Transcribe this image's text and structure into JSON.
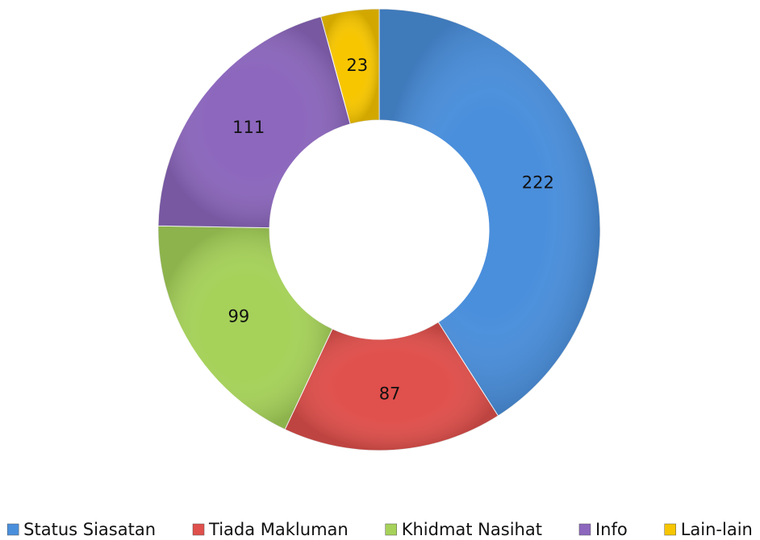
{
  "chart_data": {
    "type": "pie",
    "categories": [
      "Status Siasatan",
      "Tiada Makluman",
      "Khidmat Nasihat",
      "Info",
      "Lain-lain"
    ],
    "values": [
      222,
      87,
      99,
      111,
      23
    ],
    "colors": [
      "#4a8fdc",
      "#e0504c",
      "#a6d25a",
      "#8c67bd",
      "#f7c600"
    ],
    "legend": "bottom"
  }
}
